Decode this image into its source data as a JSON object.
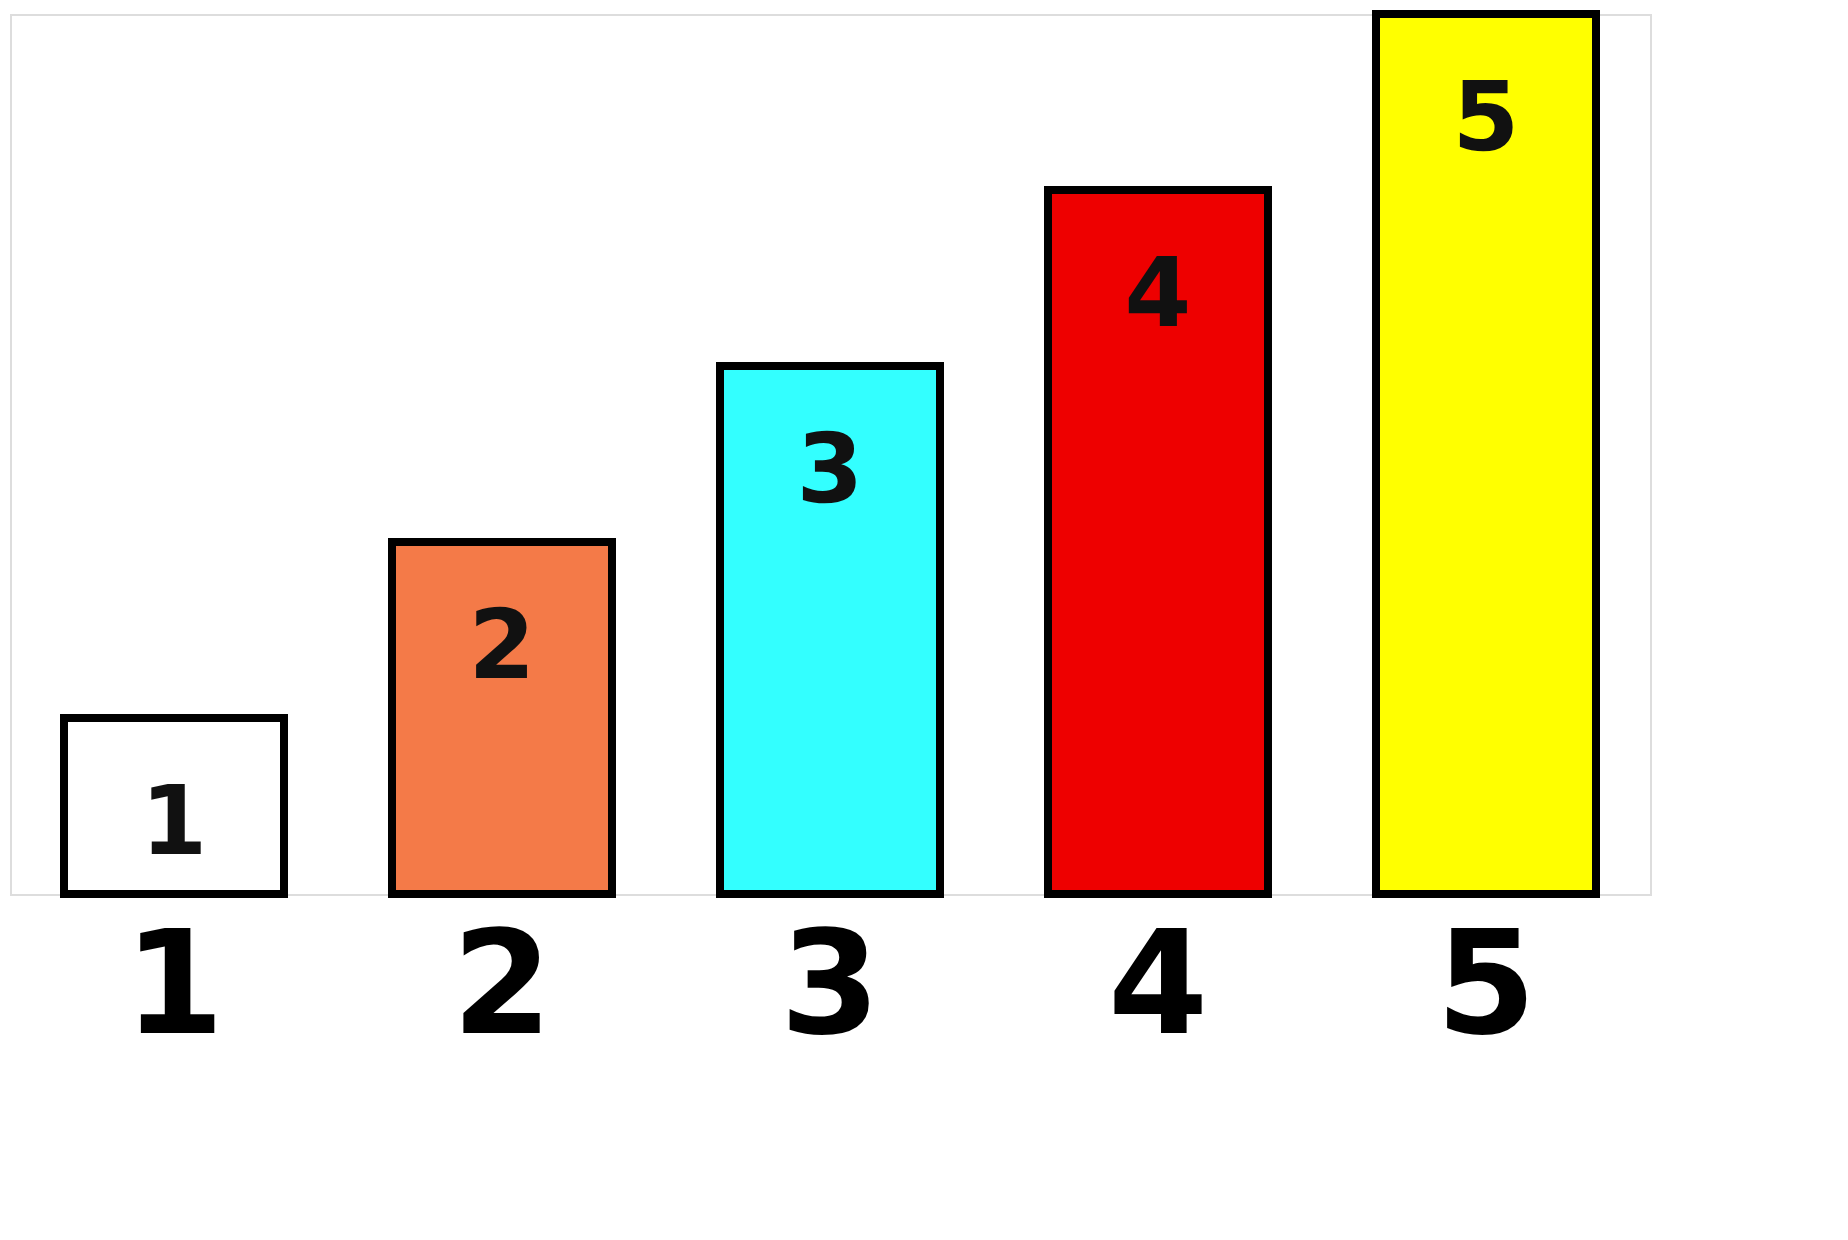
{
  "chart_data": {
    "type": "bar",
    "categories": [
      "1",
      "2",
      "3",
      "4",
      "5"
    ],
    "values": [
      1,
      2,
      3,
      4,
      5
    ],
    "colors": [
      "#ffffff",
      "#f47a48",
      "#33ffff",
      "#ee0000",
      "#ffff00"
    ],
    "data_labels": true
  }
}
